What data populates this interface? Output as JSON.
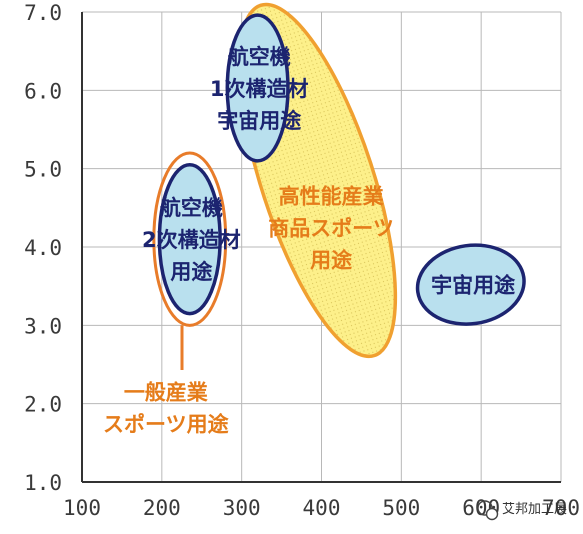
{
  "chart_data": {
    "type": "scatter",
    "title": "",
    "xlabel": "",
    "ylabel": "",
    "xlim": [
      100,
      700
    ],
    "ylim": [
      1.0,
      7.0
    ],
    "x_ticks": [
      "100",
      "200",
      "300",
      "400",
      "500",
      "600",
      "700"
    ],
    "y_ticks": [
      "1.0",
      "2.0",
      "3.0",
      "4.0",
      "5.0",
      "6.0",
      "7.0"
    ],
    "grid": true,
    "regions": [
      {
        "label_lines": [
          "高性能産業",
          "商品スポーツ",
          "用途"
        ],
        "center": [
          395,
          4.85
        ],
        "rx": 70,
        "ry": 2.35,
        "tilt_deg": -18,
        "fill": "#fdf08a",
        "stroke": "#f0a030",
        "text_color": "#e57c1a",
        "label_anchor": [
          412,
          4.25
        ]
      },
      {
        "label_lines": [
          "一般産業",
          "スポーツ用途"
        ],
        "center": [
          235,
          4.1
        ],
        "rx": 45,
        "ry": 1.1,
        "tilt_deg": 0,
        "fill": "none",
        "stroke": "#e87c2a",
        "text_color": "#e57c1a",
        "label_anchor": [
          205,
          1.95
        ]
      },
      {
        "label_lines": [
          "航空機",
          "2次構造材",
          "用途"
        ],
        "center": [
          235,
          4.1
        ],
        "rx": 38,
        "ry": 0.95,
        "tilt_deg": 0,
        "fill": "#b9e0ee",
        "stroke": "#1c2470",
        "text_color": "#1c2470",
        "label_anchor": [
          237,
          4.1
        ]
      },
      {
        "label_lines": [
          "航空機",
          "1次構造材",
          "宇宙用途"
        ],
        "center": [
          320,
          6.03
        ],
        "rx": 38,
        "ry": 0.93,
        "tilt_deg": 0,
        "fill": "#b9e0ee",
        "stroke": "#1c2470",
        "text_color": "#1c2470",
        "label_anchor": [
          322,
          6.03
        ]
      },
      {
        "label_lines": [
          "宇宙用途"
        ],
        "center": [
          587,
          3.52
        ],
        "rx": 67,
        "ry": 0.5,
        "tilt_deg": -8,
        "fill": "#b9e0ee",
        "stroke": "#1c2470",
        "text_color": "#1c2470",
        "label_anchor": [
          590,
          3.52
        ]
      }
    ]
  },
  "colors": {
    "grid": "#b8b8b8",
    "axis": "#333333",
    "leader_line": "#e87c2a"
  },
  "watermark": {
    "text": "艾邦加工展",
    "icon": "wechat-icon"
  }
}
